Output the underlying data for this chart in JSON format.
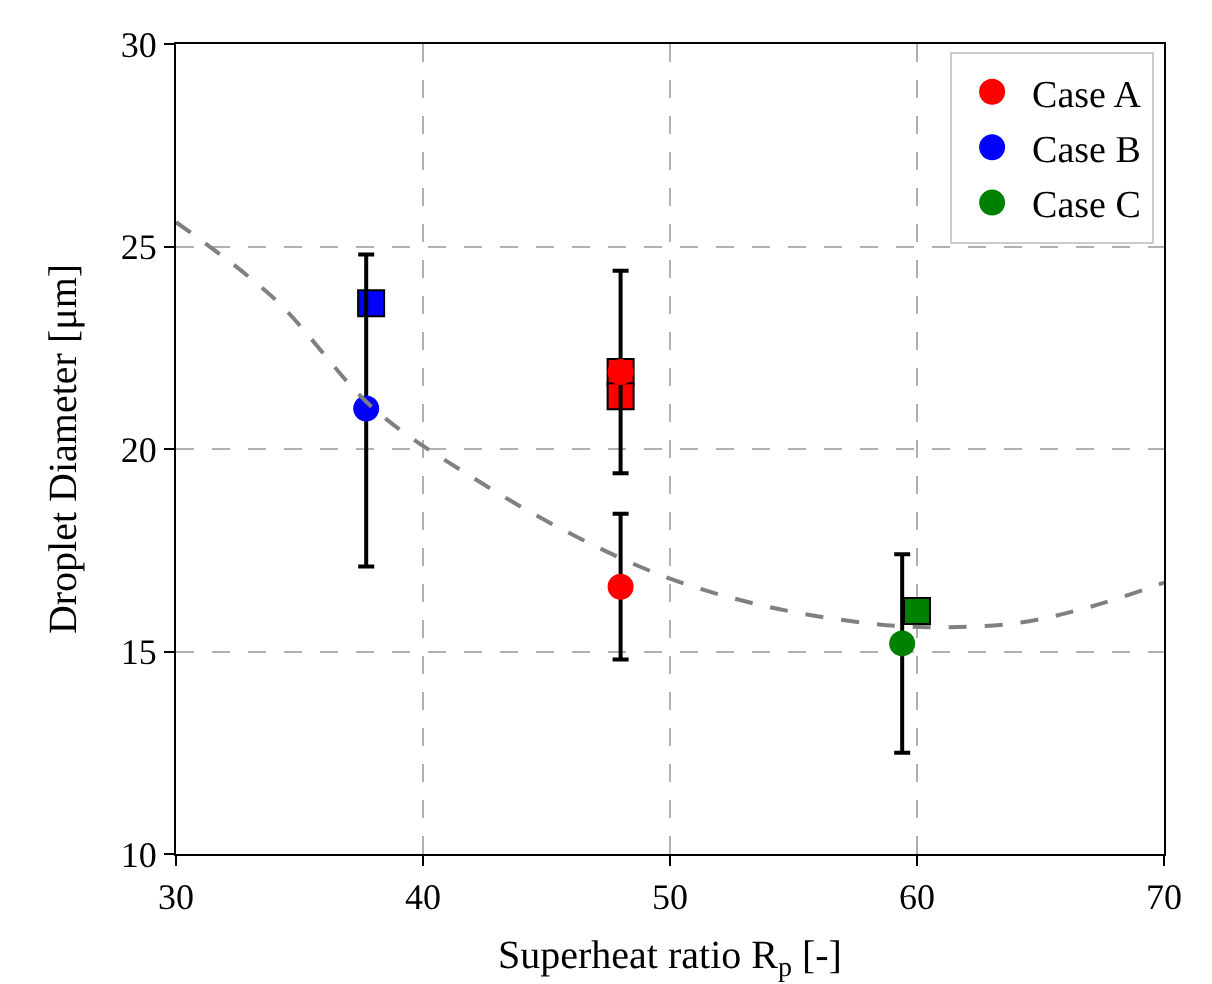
{
  "chart_data": {
    "type": "scatter",
    "xlabel": "Superheat ratio R$_{p}$ [-]",
    "ylabel": "Droplet Diameter [μm]",
    "xlim": [
      30,
      70
    ],
    "xticks": [
      30,
      40,
      50,
      60,
      70
    ],
    "ylim": [
      10,
      30
    ],
    "yticks": [
      10,
      15,
      20,
      25,
      30
    ],
    "grid": true,
    "legend": "top right",
    "series": [
      {
        "color": "#ff0000",
        "marker": "square",
        "x": [
          48,
          48
        ],
        "values": [
          21.9,
          21.3
        ]
      },
      {
        "color": "#0000ff",
        "marker": "square",
        "x": [
          37.9
        ],
        "values": [
          23.6
        ]
      },
      {
        "color": "#008000",
        "marker": "square",
        "x": [
          60.0
        ],
        "values": [
          16.0
        ]
      },
      {
        "name": "Case A",
        "color": "#ff0000",
        "marker": "circle",
        "x": [
          48,
          48
        ],
        "values": [
          16.6,
          21.9
        ],
        "errors": [
          [
            14.8,
            18.4
          ],
          [
            19.4,
            24.4
          ]
        ]
      },
      {
        "name": "Case B",
        "color": "#0000ff",
        "marker": "circle",
        "x": [
          37.7
        ],
        "values": [
          21.0
        ],
        "errors": [
          [
            17.1,
            24.8
          ]
        ]
      },
      {
        "name": "Case C",
        "color": "#008000",
        "marker": "circle",
        "x": [
          59.4
        ],
        "values": [
          15.2
        ],
        "errors": [
          [
            12.5,
            17.4
          ]
        ]
      },
      {
        "type": "line",
        "color": "#808080",
        "line_style": "dashed",
        "marker": "none",
        "x": [
          30,
          34,
          38,
          42,
          46,
          50,
          54,
          58,
          60.5,
          64,
          67,
          70
        ],
        "values": [
          25.6,
          23.7,
          21.0,
          19.3,
          17.9,
          16.8,
          16.1,
          15.7,
          15.6,
          15.7,
          16.1,
          16.7
        ]
      }
    ]
  }
}
